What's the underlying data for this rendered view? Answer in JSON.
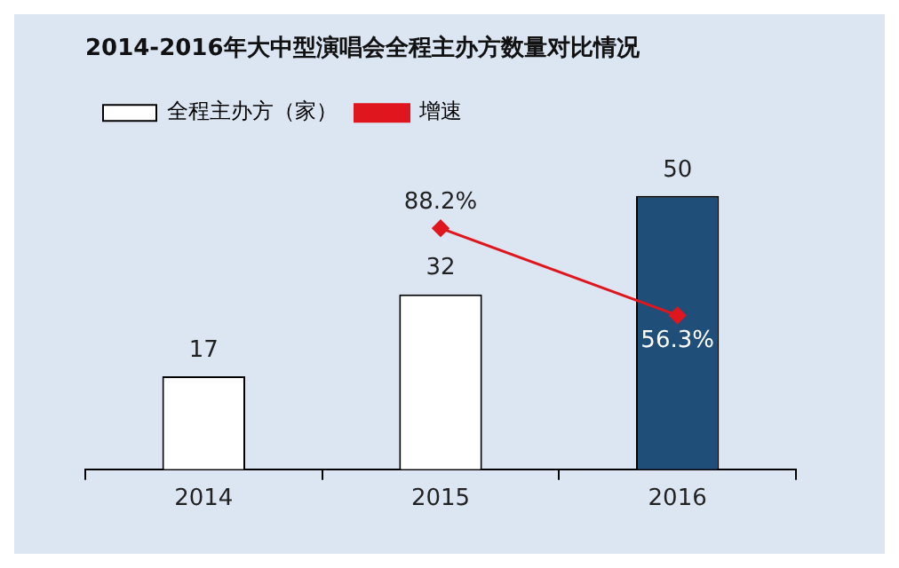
{
  "chart_data": {
    "type": "bar",
    "title": "2014-2016年大中型演唱会全程主办方数量对比情况",
    "categories": [
      "2014",
      "2015",
      "2016"
    ],
    "series": [
      {
        "name": "全程主办方（家）",
        "color": "#ffffff",
        "colors": [
          "#ffffff",
          "#ffffff",
          "#1f4e79"
        ],
        "values": [
          17,
          32,
          50
        ]
      },
      {
        "name": "增速",
        "type": "line",
        "axis": "y2",
        "color": "#e0161e",
        "marker": "diamond",
        "values": [
          null,
          88.2,
          56.3
        ],
        "value_labels": [
          null,
          "88.2%",
          "56.3%"
        ]
      }
    ],
    "data_labels": true,
    "legend": "top left",
    "grid": false,
    "tick_labels": "x"
  }
}
